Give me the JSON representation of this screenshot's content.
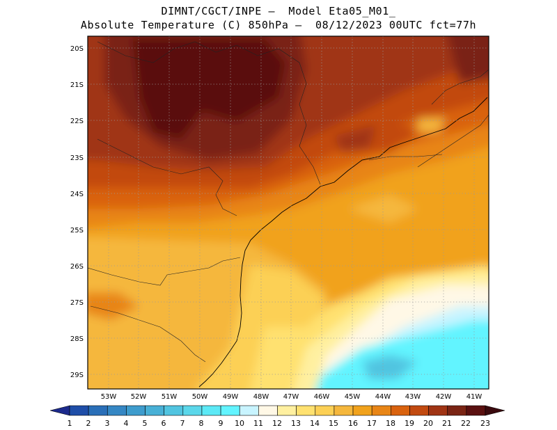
{
  "title": {
    "line1": "DIMNT/CGCT/INPE —  Model Eta05_M01_",
    "line2": "Absolute Temperature (C) 850hPa —  08/12/2023 00UTC fct=77h"
  },
  "map": {
    "lat_labels": [
      "20S",
      "21S",
      "22S",
      "23S",
      "24S",
      "25S",
      "26S",
      "27S",
      "28S",
      "29S"
    ],
    "lon_labels": [
      "53W",
      "52W",
      "51W",
      "50W",
      "49W",
      "48W",
      "47W",
      "46W",
      "45W",
      "44W",
      "43W",
      "42W",
      "41W"
    ]
  },
  "colorbar": {
    "labels": [
      "1",
      "2",
      "3",
      "4",
      "5",
      "6",
      "7",
      "8",
      "9",
      "10",
      "11",
      "12",
      "13",
      "14",
      "15",
      "16",
      "17",
      "18",
      "19",
      "20",
      "21",
      "22",
      "23"
    ],
    "colors": [
      "#1c2a8c",
      "#1f4ea8",
      "#2a6fb8",
      "#3587c4",
      "#3e9ccd",
      "#48b0d6",
      "#51c4e0",
      "#5bd7ea",
      "#5ce9f6",
      "#62f4ff",
      "#c8f4ff",
      "#fff8e6",
      "#fff0a0",
      "#ffe170",
      "#fcd055",
      "#f5b73c",
      "#f1a21c",
      "#e88516",
      "#d9620e",
      "#c24a10",
      "#a03414",
      "#7a2414",
      "#5a1010",
      "#3a0a0e"
    ]
  }
}
